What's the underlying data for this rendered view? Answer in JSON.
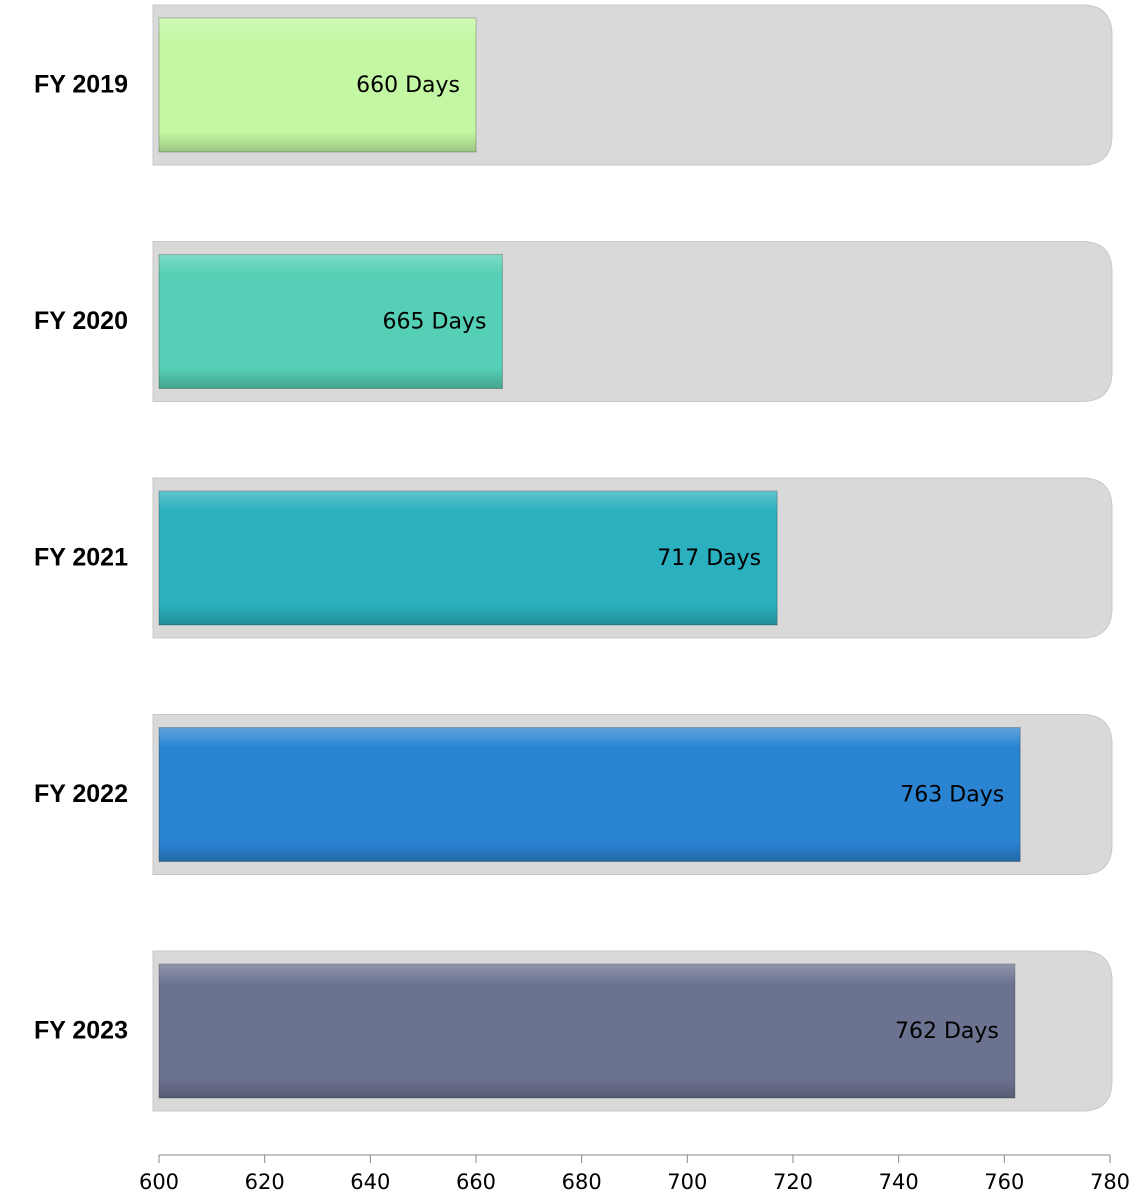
{
  "chart_data": {
    "type": "bar",
    "orientation": "horizontal",
    "categories": [
      "FY 2019",
      "FY 2020",
      "FY 2021",
      "FY 2022",
      "FY 2023"
    ],
    "values": [
      660,
      665,
      717,
      763,
      762
    ],
    "value_labels": [
      "660 Days",
      "665 Days",
      "717 Days",
      "763 Days",
      "762 Days"
    ],
    "colors": [
      "#c3f7a3",
      "#55cfb5",
      "#2bb0bf",
      "#2a84d2",
      "#6c7390"
    ],
    "xlim": [
      600,
      780
    ],
    "xticks": [
      600,
      620,
      640,
      660,
      680,
      700,
      720,
      740,
      760,
      780
    ]
  }
}
